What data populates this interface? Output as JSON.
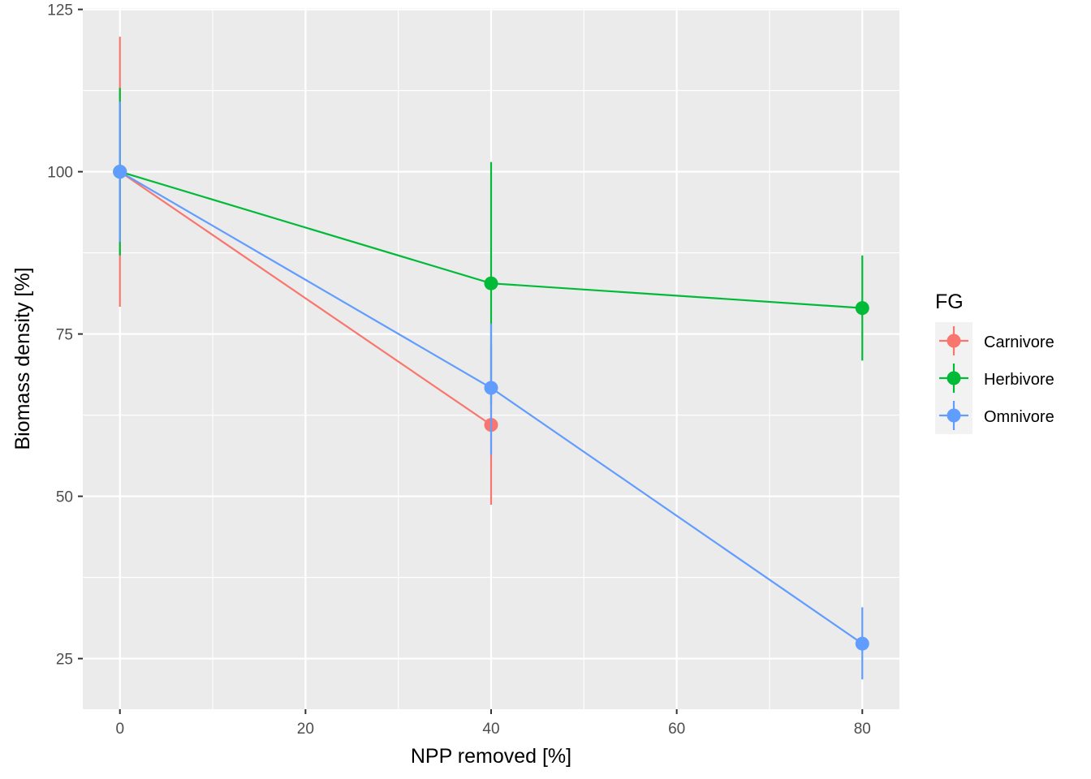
{
  "chart_data": {
    "type": "line",
    "xlabel": "NPP removed [%]",
    "ylabel": "Biomass density [%]",
    "xlim": [
      -4,
      84
    ],
    "ylim": [
      17.2,
      125.2
    ],
    "x_ticks": [
      0,
      20,
      40,
      60,
      80
    ],
    "x_minor": [
      10,
      30,
      50,
      70
    ],
    "y_ticks": [
      25,
      50,
      75,
      100,
      125
    ],
    "y_minor": [
      37.5,
      62.5,
      87.5,
      112.5
    ],
    "grid": true,
    "legend": {
      "title": "FG",
      "position": "right"
    },
    "series": [
      {
        "name": "Carnivore",
        "color": "#F8766D",
        "points": [
          {
            "x": 0,
            "y": 100,
            "ymin": 79.2,
            "ymax": 120.8
          },
          {
            "x": 40,
            "y": 61,
            "ymin": 48.7,
            "ymax": 73.3
          }
        ]
      },
      {
        "name": "Herbivore",
        "color": "#00BA38",
        "points": [
          {
            "x": 0,
            "y": 100,
            "ymin": 87.1,
            "ymax": 112.9
          },
          {
            "x": 40,
            "y": 82.8,
            "ymin": 64.1,
            "ymax": 101.5
          },
          {
            "x": 80,
            "y": 79,
            "ymin": 70.9,
            "ymax": 87.1
          }
        ]
      },
      {
        "name": "Omnivore",
        "color": "#619CFF",
        "points": [
          {
            "x": 0,
            "y": 100,
            "ymin": 89.2,
            "ymax": 110.8
          },
          {
            "x": 40,
            "y": 66.7,
            "ymin": 56.4,
            "ymax": 76.6
          },
          {
            "x": 80,
            "y": 27.3,
            "ymin": 21.8,
            "ymax": 32.9
          }
        ]
      }
    ]
  }
}
